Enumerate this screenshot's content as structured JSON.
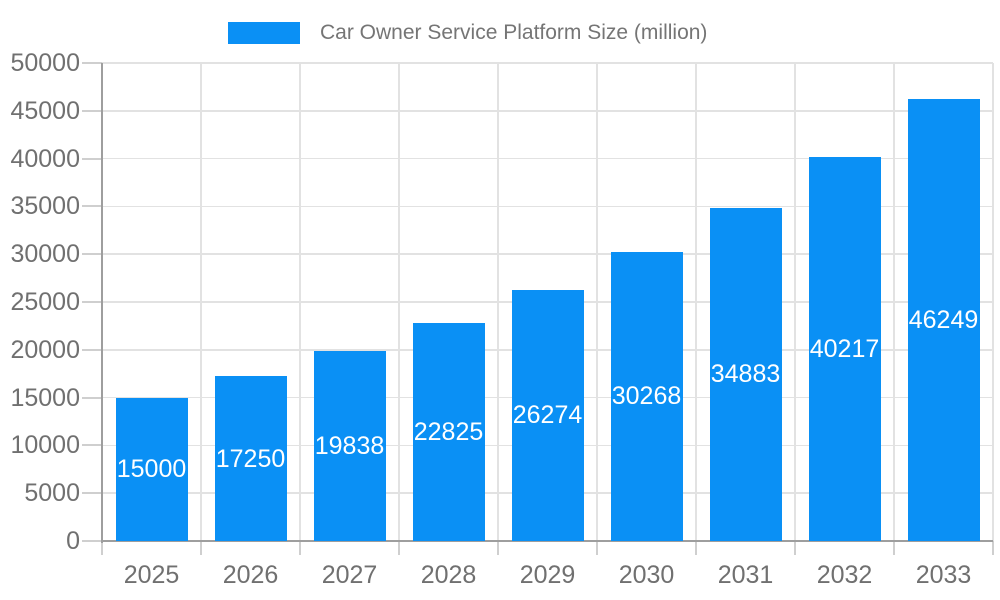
{
  "legend": {
    "label": "Car Owner Service Platform Size (million)"
  },
  "chart_data": {
    "type": "bar",
    "title": "",
    "series_name": "Car Owner Service Platform Size (million)",
    "categories": [
      "2025",
      "2026",
      "2027",
      "2028",
      "2029",
      "2030",
      "2031",
      "2032",
      "2033"
    ],
    "values": [
      15000,
      17250,
      19838,
      22825,
      26274,
      30268,
      34883,
      40217,
      46249
    ],
    "xlabel": "",
    "ylabel": "",
    "ylim": [
      0,
      50000
    ],
    "yticks": [
      0,
      5000,
      10000,
      15000,
      20000,
      25000,
      30000,
      35000,
      40000,
      45000,
      50000
    ],
    "grid": true,
    "legend_position": "top",
    "value_label_position": "inside-center",
    "colors": {
      "bar": "#0A90F5",
      "grid": "#E2E2E2",
      "axis": "#9E9E9E",
      "tick": "#CFCFCF",
      "tick_text": "#707070",
      "legend_text": "#757575",
      "value_label": "#FFFFFF",
      "background": "#FFFFFF"
    }
  }
}
